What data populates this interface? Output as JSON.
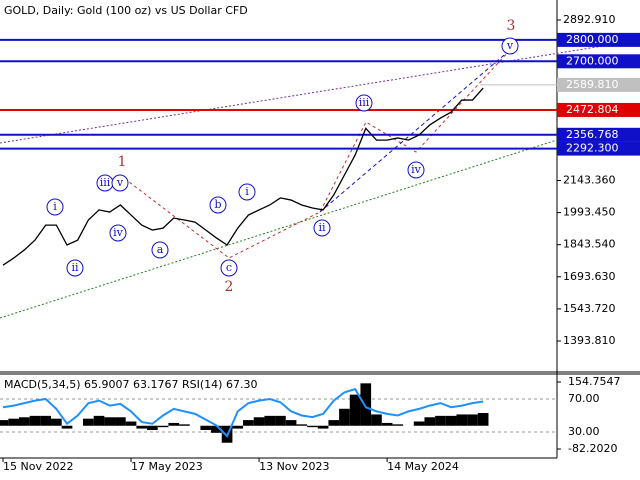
{
  "chart_data": [
    {
      "type": "line",
      "title": "GOLD, Daily:  Gold (100 oz) vs US Dollar CFD",
      "categories": [
        "15 Nov 2022",
        null,
        null,
        null,
        null,
        null,
        null,
        null,
        null,
        null,
        null,
        null,
        "17 May 2023",
        null,
        null,
        null,
        null,
        null,
        null,
        null,
        null,
        null,
        null,
        null,
        "13 Nov 2023",
        null,
        null,
        null,
        null,
        null,
        null,
        null,
        null,
        null,
        null,
        null,
        "14 May 2024",
        null,
        null,
        null,
        null,
        null,
        null,
        null,
        null,
        null
      ],
      "series": [
        {
          "name": "GOLD",
          "color": "#000000",
          "values": [
            1748,
            1781,
            1819,
            1865,
            1935,
            1935,
            1842,
            1865,
            1959,
            2006,
            1996,
            2029,
            1982,
            1935,
            1912,
            1921,
            1968,
            1959,
            1949,
            1912,
            1875,
            1842,
            1921,
            1982,
            2006,
            2029,
            2062,
            2052,
            2029,
            2015,
            2006,
            2076,
            2169,
            2262,
            2387,
            2332,
            2332,
            2342,
            2332,
            2356,
            2403,
            2435,
            2463,
            2519,
            2519,
            2575
          ]
        }
      ],
      "ylim": [
        1249,
        2986.3
      ],
      "yticks": [
        {
          "value": 2892.91,
          "label": "2892.910"
        },
        {
          "value": 2143.36,
          "label": "2143.360"
        },
        {
          "value": 1993.45,
          "label": "1993.450"
        },
        {
          "value": 1843.54,
          "label": "1843.540"
        },
        {
          "value": 1693.63,
          "label": "1693.630"
        },
        {
          "value": 1543.72,
          "label": "1543.720"
        },
        {
          "value": 1393.81,
          "label": "1393.810"
        }
      ],
      "levels": [
        {
          "value": 2800,
          "label": "2800.000",
          "color": "#1010c8"
        },
        {
          "value": 2700,
          "label": "2700.000",
          "color": "#1010c8"
        },
        {
          "value": 2472.804,
          "label": "2472.804",
          "color": "#e00000"
        },
        {
          "value": 2356.768,
          "label": "2356.768",
          "color": "#1010c8"
        },
        {
          "value": 2292.3,
          "label": "2292.300",
          "color": "#1010c8"
        }
      ],
      "last": {
        "value": 2589.81,
        "label": "2589.810",
        "color": "#c0c0c0"
      },
      "annotations": [
        "i",
        "ii",
        "iii",
        "v",
        "iv",
        "a",
        "b",
        "c",
        "i",
        "ii",
        "iii",
        "iv",
        "v",
        "1",
        "2",
        "3"
      ]
    },
    {
      "type": "indicator",
      "title": "MACD(5,34,5) 65.9007 63.1767 RSI(14) 67.30",
      "series": [
        {
          "name": "MACD",
          "color": "#000000",
          "values": [
            20,
            25,
            30,
            35,
            35,
            25,
            -10,
            0,
            25,
            35,
            30,
            30,
            15,
            -10,
            -15,
            -5,
            10,
            5,
            0,
            -15,
            -25,
            -60,
            -10,
            20,
            30,
            35,
            35,
            20,
            5,
            -5,
            -10,
            20,
            60,
            110,
            150,
            40,
            10,
            5,
            0,
            15,
            30,
            35,
            35,
            40,
            40,
            45
          ]
        },
        {
          "name": "RSI",
          "color": "#1e90ff",
          "axis": "y2",
          "values": [
            60,
            62,
            65,
            68,
            70,
            58,
            40,
            50,
            65,
            68,
            62,
            64,
            55,
            42,
            40,
            50,
            58,
            55,
            52,
            45,
            38,
            25,
            55,
            65,
            68,
            70,
            66,
            55,
            50,
            48,
            52,
            68,
            78,
            82,
            60,
            55,
            52,
            50,
            55,
            58,
            62,
            65,
            60,
            62,
            65,
            67
          ]
        }
      ],
      "ylim": [
        -103.4,
        183.0
      ],
      "yticks": [
        154.7547,
        {
          "value": -82.202,
          "label": "-82.2020"
        }
      ],
      "y2lim": [
        2.1,
        100.3
      ],
      "y2ticks": [
        {
          "value": 70,
          "label": "70.00"
        },
        {
          "value": 30,
          "label": "30.00"
        }
      ]
    }
  ]
}
